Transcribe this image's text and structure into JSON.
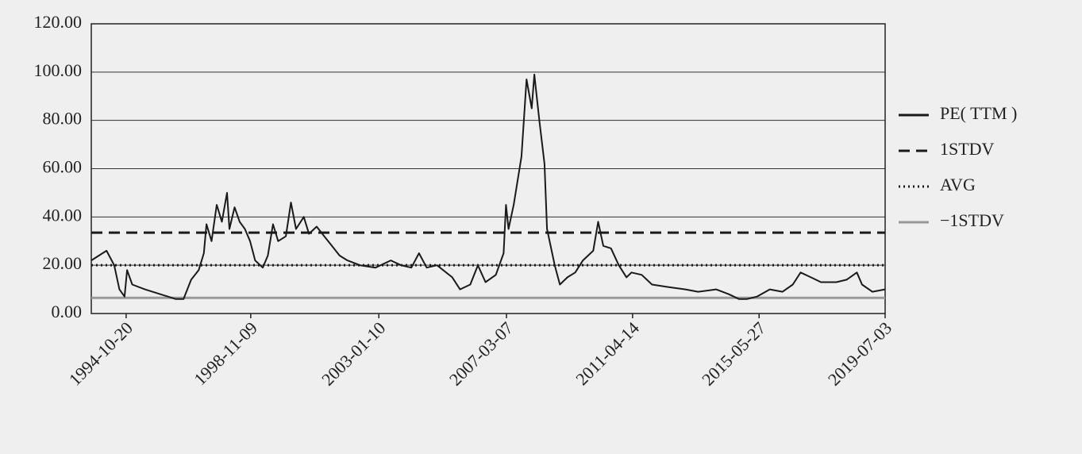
{
  "chart_data": {
    "type": "line",
    "x": [
      "1993-09-01",
      "1993-12-01",
      "1994-03-01",
      "1994-06-01",
      "1994-08-01",
      "1994-10-01",
      "1994-11-01",
      "1995-01-01",
      "1995-06-01",
      "1995-12-01",
      "1996-03-01",
      "1996-06-01",
      "1996-09-01",
      "1996-12-01",
      "1997-03-01",
      "1997-05-01",
      "1997-06-01",
      "1997-08-01",
      "1997-10-01",
      "1997-12-01",
      "1998-02-01",
      "1998-03-01",
      "1998-05-01",
      "1998-07-01",
      "1998-09-01",
      "1998-11-01",
      "1999-01-01",
      "1999-04-01",
      "1999-06-01",
      "1999-08-01",
      "1999-10-01",
      "2000-01-01",
      "2000-03-01",
      "2000-05-01",
      "2000-08-01",
      "2000-10-01",
      "2001-01-01",
      "2001-04-01",
      "2001-07-01",
      "2001-10-01",
      "2002-01-01",
      "2002-06-01",
      "2002-12-01",
      "2003-06-01",
      "2003-10-01",
      "2004-02-01",
      "2004-05-01",
      "2004-08-01",
      "2004-12-01",
      "2005-06-01",
      "2005-09-01",
      "2006-01-01",
      "2006-04-01",
      "2006-07-01",
      "2006-11-01",
      "2007-02-01",
      "2007-03-01",
      "2007-04-01",
      "2007-06-01",
      "2007-09-01",
      "2007-11-01",
      "2008-01-01",
      "2008-02-01",
      "2008-04-01",
      "2008-06-01",
      "2008-07-01",
      "2008-10-01",
      "2008-12-01",
      "2009-03-01",
      "2009-06-01",
      "2009-09-01",
      "2010-01-01",
      "2010-03-01",
      "2010-05-01",
      "2010-08-01",
      "2010-11-01",
      "2011-02-01",
      "2011-04-01",
      "2011-08-01",
      "2011-12-01",
      "2012-06-01",
      "2013-01-01",
      "2013-06-01",
      "2014-01-01",
      "2014-06-01",
      "2014-10-01",
      "2015-01-01",
      "2015-05-01",
      "2015-10-01",
      "2016-03-01",
      "2016-07-01",
      "2016-10-01",
      "2017-02-01",
      "2017-06-01",
      "2017-12-01",
      "2018-04-01",
      "2018-08-01",
      "2018-10-01",
      "2019-02-01",
      "2019-07-01"
    ],
    "series": [
      {
        "name": "PE( TTM )",
        "color": "#1a1a1a",
        "values": [
          22,
          24,
          26,
          20,
          10,
          7,
          18,
          12,
          10,
          8,
          7,
          6,
          6,
          14,
          18,
          25,
          37,
          30,
          45,
          38,
          50,
          35,
          44,
          38,
          35,
          30,
          22,
          19,
          24,
          37,
          30,
          32,
          46,
          35,
          40,
          33,
          36,
          32,
          28,
          24,
          22,
          20,
          19,
          22,
          20,
          19,
          25,
          19,
          20,
          15,
          10,
          12,
          20,
          13,
          16,
          25,
          45,
          35,
          45,
          65,
          97,
          85,
          99,
          80,
          62,
          35,
          20,
          12,
          15,
          17,
          22,
          26,
          38,
          28,
          27,
          20,
          15,
          17,
          16,
          12,
          11,
          10,
          9,
          10,
          8,
          6,
          6,
          7,
          10,
          9,
          12,
          17,
          15,
          13,
          13,
          14,
          17,
          12,
          9,
          10
        ]
      }
    ],
    "reference_lines": [
      {
        "name": "1STDV",
        "value": 33.5,
        "style": "dashed",
        "color": "#1a1a1a"
      },
      {
        "name": "AVG",
        "value": 20,
        "style": "dotted",
        "color": "#1a1a1a"
      },
      {
        "name": "−1STDV",
        "value": 6.5,
        "style": "solid",
        "color": "#999999"
      }
    ],
    "xlim": [
      "1993-09-01",
      "2019-07-03"
    ],
    "xticks": [
      "1994-10-20",
      "1998-11-09",
      "2003-01-10",
      "2007-03-07",
      "2011-04-14",
      "2015-05-27",
      "2019-07-03"
    ],
    "ylim": [
      0,
      120
    ],
    "yticks": [
      {
        "value": 0,
        "label": "0.00"
      },
      {
        "value": 20,
        "label": "20.00"
      },
      {
        "value": 40,
        "label": "40.00"
      },
      {
        "value": 60,
        "label": "60.00"
      },
      {
        "value": 80,
        "label": "80.00"
      },
      {
        "value": 100,
        "label": "100.00"
      },
      {
        "value": 120,
        "label": "120.00"
      }
    ],
    "grid": true,
    "legend": "right"
  }
}
